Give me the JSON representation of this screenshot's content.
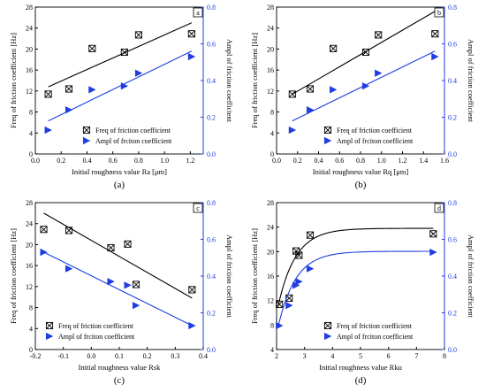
{
  "colors": {
    "freq": "#000000",
    "ampl": "#1f3de0",
    "axis_right": "#1f3de0"
  },
  "marker_icons": {
    "freq": "boxed-x-marker-icon",
    "ampl": "right-triangle-marker-icon"
  },
  "chart_data": [
    {
      "type": "scatter",
      "panel_tag": "a",
      "caption": "(a)",
      "xlabel": "Initial roughness value Ra [μm]",
      "ylabel": "Freq of friction coefficient [Hz]",
      "y2label": "Ampl of friction coefficient",
      "xlim": [
        0.0,
        1.3
      ],
      "ylim": [
        0,
        28
      ],
      "y2lim": [
        0.0,
        0.8
      ],
      "xticks": [
        "0.0",
        "0.2",
        "0.4",
        "0.6",
        "0.8",
        "1.0",
        "1.2"
      ],
      "yticks": [
        "0",
        "4",
        "8",
        "12",
        "16",
        "20",
        "24",
        "28"
      ],
      "y2ticks": [
        "0.0",
        "0.2",
        "0.4",
        "0.6",
        "0.8"
      ],
      "legend_position": "bottom-right",
      "series": [
        {
          "name": "Freq of friction coefficient",
          "axis": "left",
          "marker": "boxed-x",
          "x": [
            0.1,
            0.26,
            0.44,
            0.69,
            0.8,
            1.21
          ],
          "y": [
            11.4,
            12.4,
            20.1,
            19.4,
            22.7,
            22.9
          ],
          "fit": [
            [
              0.1,
              12.8
            ],
            [
              1.21,
              25.0
            ]
          ]
        },
        {
          "name": "Ampl of frciton coefficient",
          "axis": "right",
          "marker": "right-triangle",
          "x": [
            0.1,
            0.26,
            0.44,
            0.69,
            0.8,
            1.21
          ],
          "y": [
            0.13,
            0.24,
            0.35,
            0.37,
            0.44,
            0.53
          ],
          "fit": [
            [
              0.1,
              0.18
            ],
            [
              1.21,
              0.56
            ]
          ]
        }
      ]
    },
    {
      "type": "scatter",
      "panel_tag": "b",
      "caption": "(b)",
      "xlabel": "Initial roughness value Rq [μm]",
      "ylabel": "Freq of friction coefficient [Hz]",
      "y2label": "Ampl of friction coefficient",
      "xlim": [
        0.0,
        1.6
      ],
      "ylim": [
        0,
        28
      ],
      "y2lim": [
        0.0,
        0.8
      ],
      "xticks": [
        "0.0",
        "0.2",
        "0.4",
        "0.6",
        "0.8",
        "1.0",
        "1.2",
        "1.4",
        "1.6"
      ],
      "yticks": [
        "0",
        "4",
        "8",
        "12",
        "16",
        "20",
        "24",
        "28"
      ],
      "y2ticks": [
        "0.0",
        "0.2",
        "0.4",
        "0.6",
        "0.8"
      ],
      "legend_position": "bottom-right",
      "series": [
        {
          "name": "Freq of friction coefficient",
          "axis": "left",
          "marker": "boxed-x",
          "x": [
            0.15,
            0.32,
            0.54,
            0.85,
            0.97,
            1.51
          ],
          "y": [
            11.4,
            12.4,
            20.1,
            19.4,
            22.7,
            22.9
          ],
          "fit": [
            [
              0.15,
              11.4
            ],
            [
              1.51,
              27.2
            ]
          ]
        },
        {
          "name": "Ampl of frciton coefficient",
          "axis": "right",
          "marker": "right-triangle",
          "x": [
            0.15,
            0.32,
            0.54,
            0.85,
            0.97,
            1.51
          ],
          "y": [
            0.13,
            0.24,
            0.35,
            0.37,
            0.44,
            0.53
          ],
          "fit": [
            [
              0.15,
              0.18
            ],
            [
              1.51,
              0.56
            ]
          ]
        }
      ]
    },
    {
      "type": "scatter",
      "panel_tag": "c",
      "caption": "(c)",
      "xlabel": "Initial roughness value Rsk",
      "ylabel": "Freq of friction coefficient [Hz]",
      "y2label": "Ampl of friction coefficient",
      "xlim": [
        -0.2,
        0.4
      ],
      "ylim": [
        0,
        28
      ],
      "y2lim": [
        0.0,
        0.8
      ],
      "xticks": [
        "-0.2",
        "-0.1",
        "0.0",
        "0.1",
        "0.2",
        "0.3",
        "0.4"
      ],
      "yticks": [
        "0",
        "4",
        "8",
        "12",
        "16",
        "20",
        "24",
        "28"
      ],
      "y2ticks": [
        "0.0",
        "0.2",
        "0.4",
        "0.6",
        "0.8"
      ],
      "legend_position": "bottom-left",
      "series": [
        {
          "name": "Freq of friction coefficient",
          "axis": "left",
          "marker": "boxed-x",
          "x": [
            -0.17,
            -0.08,
            0.07,
            0.13,
            0.16,
            0.36
          ],
          "y": [
            22.9,
            22.7,
            19.4,
            20.1,
            12.4,
            11.4
          ],
          "fit": [
            [
              -0.17,
              26.0
            ],
            [
              0.36,
              9.8
            ]
          ]
        },
        {
          "name": "Ampl of frciton coefficient",
          "axis": "right",
          "marker": "right-triangle",
          "x": [
            -0.17,
            -0.08,
            0.07,
            0.13,
            0.16,
            0.36
          ],
          "y": [
            0.53,
            0.44,
            0.37,
            0.35,
            0.24,
            0.13
          ],
          "fit": [
            [
              -0.17,
              0.53
            ],
            [
              0.36,
              0.13
            ]
          ]
        }
      ]
    },
    {
      "type": "scatter",
      "panel_tag": "d",
      "caption": "(d)",
      "xlabel": "Initial roughness value Rku",
      "ylabel": "Freq of friction coefficient [Hz]",
      "y2label": "Ampl of friction coefficient",
      "xlim": [
        2,
        8
      ],
      "ylim": [
        4,
        28
      ],
      "y2lim": [
        0.0,
        0.8
      ],
      "xticks": [
        "2",
        "3",
        "4",
        "5",
        "6",
        "7",
        "8"
      ],
      "yticks": [
        "4",
        "8",
        "12",
        "16",
        "20",
        "24",
        "28"
      ],
      "y2ticks": [
        "0.0",
        "0.2",
        "0.4",
        "0.6",
        "0.8"
      ],
      "legend_position": "bottom-right",
      "series": [
        {
          "name": "Freq of friction coefficient",
          "axis": "left",
          "marker": "boxed-x",
          "x": [
            2.1,
            2.45,
            2.7,
            2.8,
            3.2,
            7.6
          ],
          "y": [
            11.4,
            12.4,
            20.1,
            19.4,
            22.7,
            22.9
          ],
          "fit_curve": {
            "model": "exp-rise",
            "base": 11.0,
            "plateau": 23.8,
            "x0": 2.05,
            "rate": 1.6
          }
        },
        {
          "name": "Ampl of frciton coefficient",
          "axis": "right",
          "marker": "right-triangle",
          "x": [
            2.1,
            2.45,
            2.7,
            2.8,
            3.2,
            7.6
          ],
          "y": [
            0.13,
            0.24,
            0.35,
            0.37,
            0.44,
            0.53
          ],
          "fit_curve": {
            "model": "exp-rise",
            "base": 0.12,
            "plateau": 0.535,
            "x0": 2.05,
            "rate": 1.6
          }
        }
      ]
    }
  ]
}
